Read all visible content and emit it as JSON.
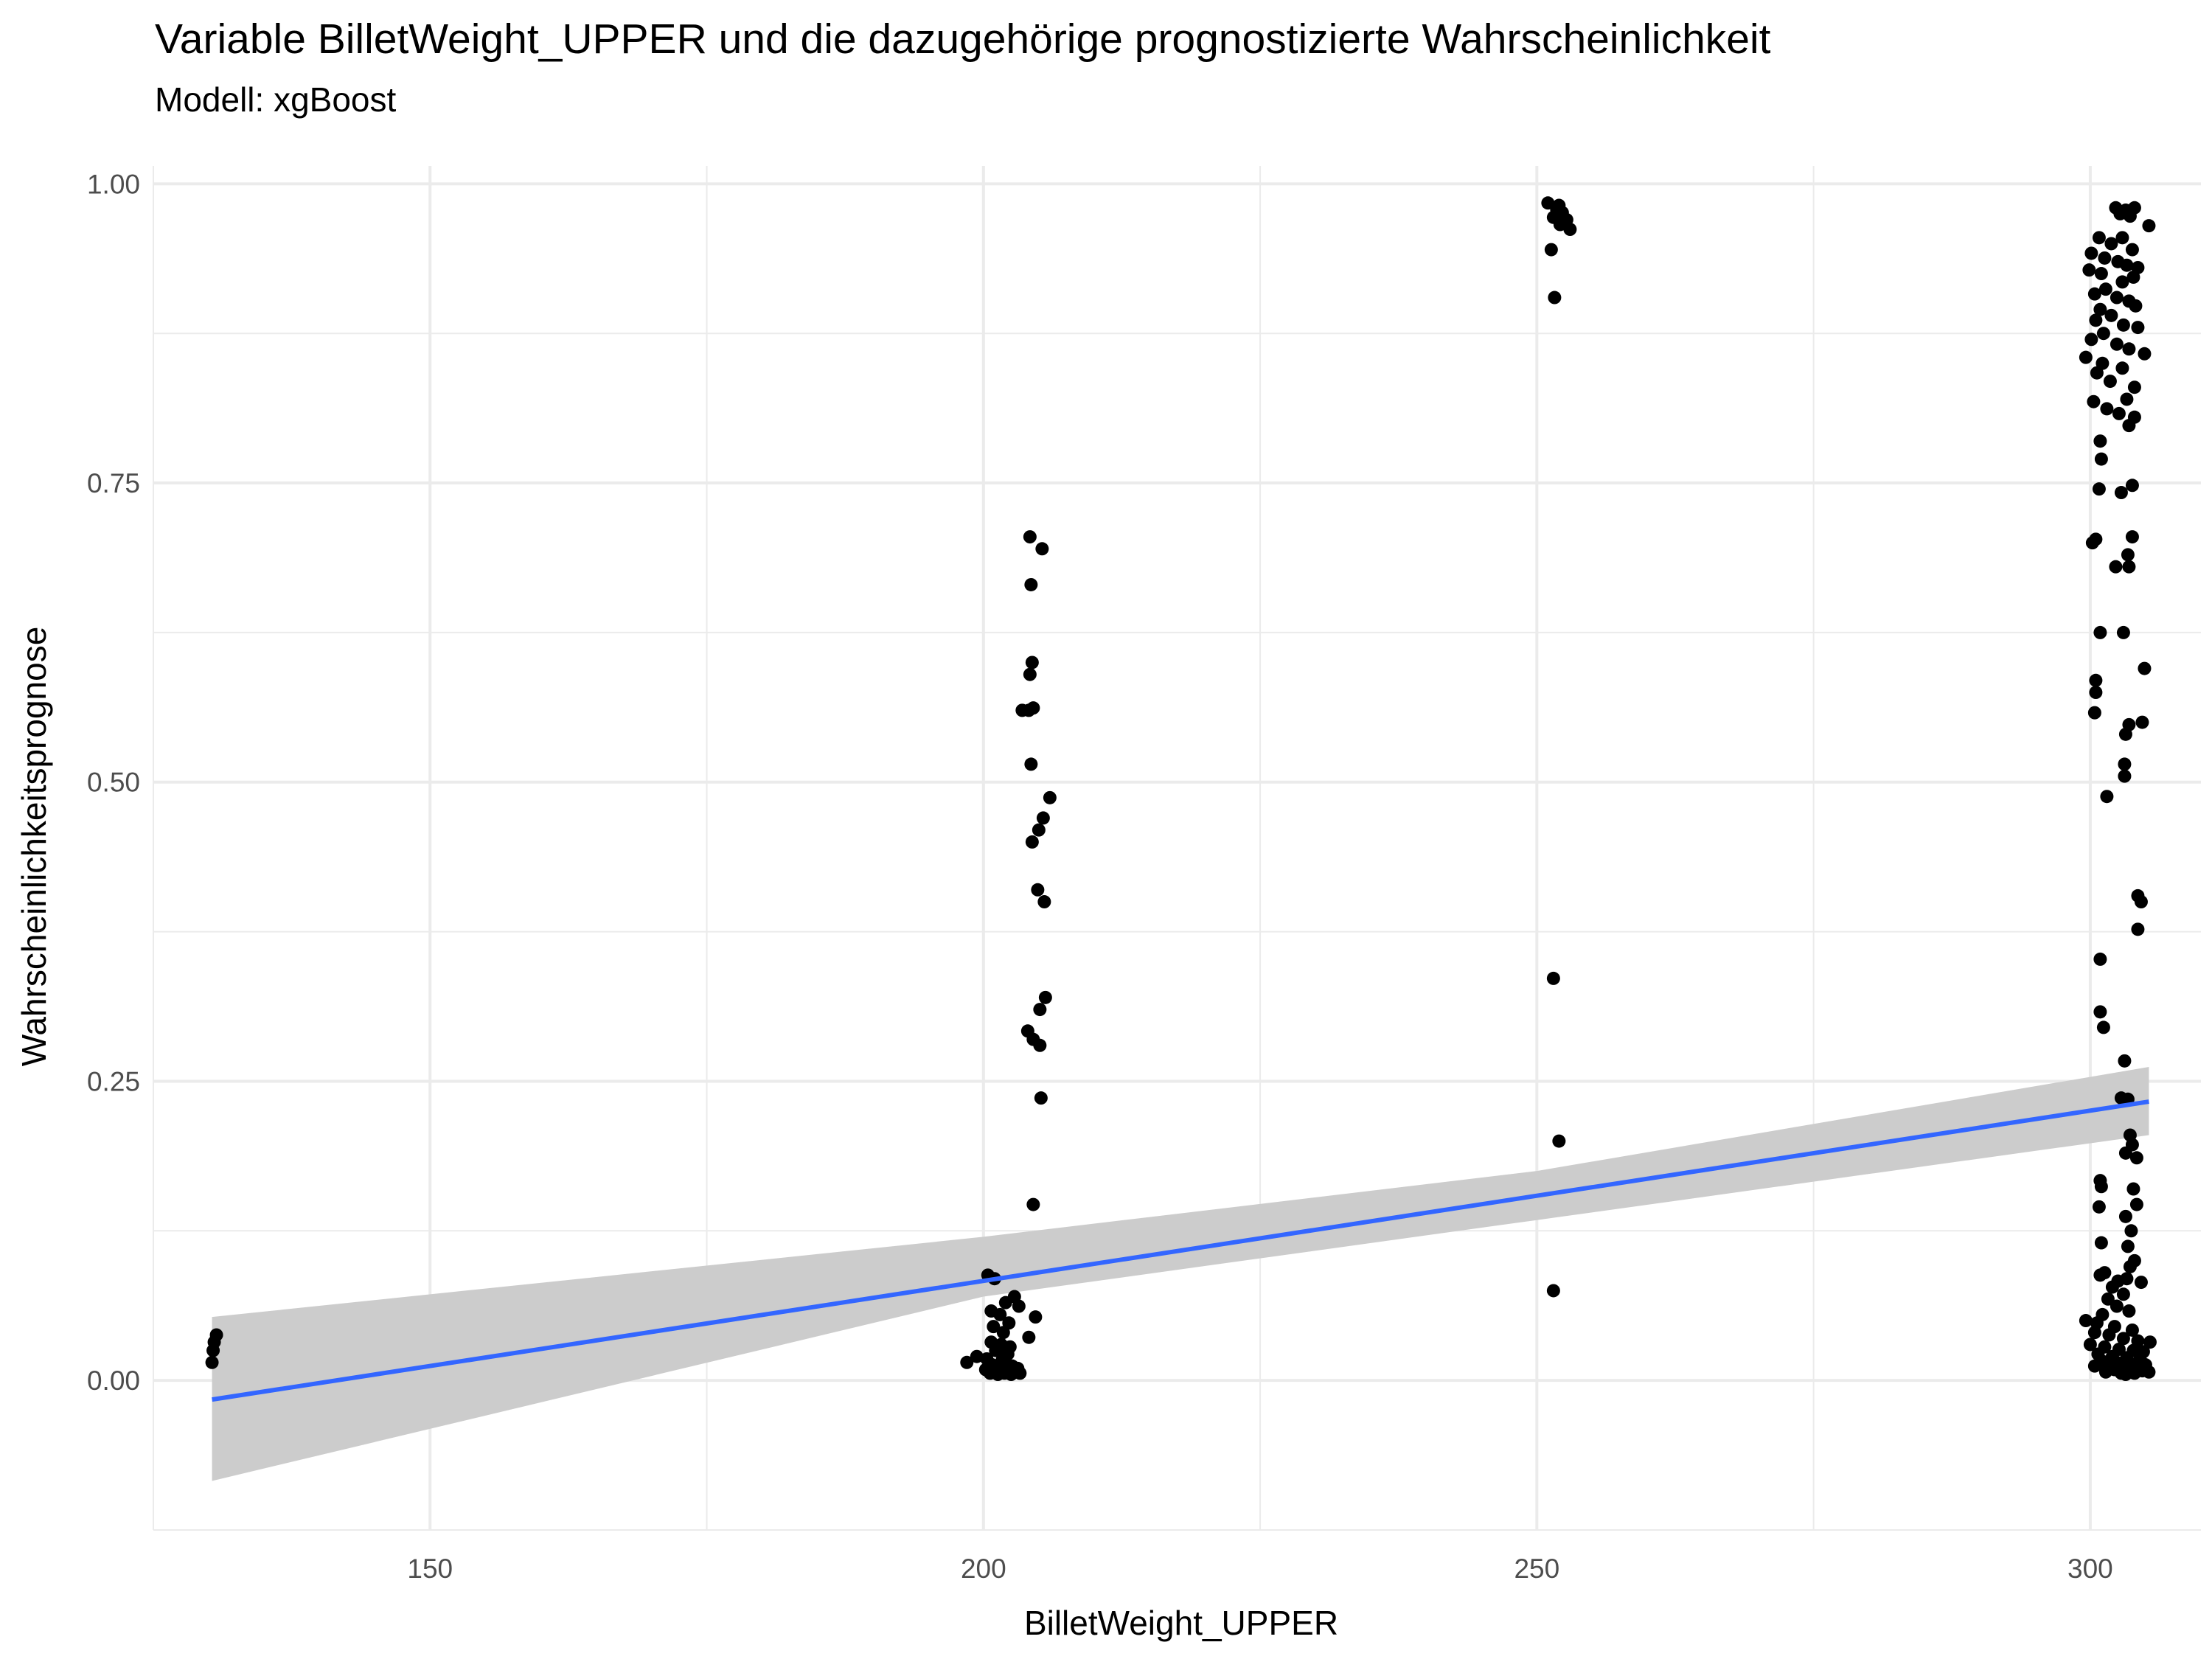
{
  "chart_data": {
    "type": "scatter",
    "title": "Variable BilletWeight_UPPER und die dazugehörige prognostizierte Wahrscheinlichkeit",
    "subtitle": "Modell: xgBoost",
    "xlabel": "BilletWeight_UPPER",
    "ylabel": "Wahrscheinlichkeitsprognose",
    "xlim": [
      125,
      310
    ],
    "ylim": [
      -0.125,
      1.015
    ],
    "x_ticks": [
      150,
      200,
      250,
      300
    ],
    "x_tick_labels": [
      "150",
      "200",
      "250",
      "300"
    ],
    "y_ticks": [
      0,
      0.25,
      0.5,
      0.75,
      1.0
    ],
    "y_tick_labels": [
      "0.00",
      "0.25",
      "0.50",
      "0.75",
      "1.00"
    ],
    "grid": true,
    "colors": {
      "points": "#000000",
      "line": "#3366FF",
      "ribbon": "#CCCCCC",
      "grid": "#EBEBEB",
      "axis_text": "#4D4D4D"
    },
    "points": [
      [
        130.3,
        0.015
      ],
      [
        130.4,
        0.025
      ],
      [
        130.5,
        0.032
      ],
      [
        130.7,
        0.038
      ],
      [
        204.2,
        0.705
      ],
      [
        205.3,
        0.695
      ],
      [
        204.3,
        0.665
      ],
      [
        204.4,
        0.6
      ],
      [
        204.2,
        0.59
      ],
      [
        203.5,
        0.56
      ],
      [
        204.1,
        0.56
      ],
      [
        204.5,
        0.562
      ],
      [
        204.3,
        0.515
      ],
      [
        206.0,
        0.487
      ],
      [
        205.4,
        0.47
      ],
      [
        205.0,
        0.46
      ],
      [
        204.4,
        0.45
      ],
      [
        204.9,
        0.41
      ],
      [
        205.5,
        0.4
      ],
      [
        205.6,
        0.32
      ],
      [
        205.1,
        0.31
      ],
      [
        204.0,
        0.292
      ],
      [
        204.5,
        0.285
      ],
      [
        205.1,
        0.28
      ],
      [
        205.2,
        0.236
      ],
      [
        204.5,
        0.147
      ],
      [
        200.4,
        0.088
      ],
      [
        201.0,
        0.085
      ],
      [
        202.8,
        0.07
      ],
      [
        202.0,
        0.065
      ],
      [
        203.2,
        0.062
      ],
      [
        200.7,
        0.058
      ],
      [
        201.5,
        0.055
      ],
      [
        204.7,
        0.053
      ],
      [
        202.3,
        0.048
      ],
      [
        200.9,
        0.045
      ],
      [
        201.8,
        0.04
      ],
      [
        204.1,
        0.036
      ],
      [
        200.7,
        0.032
      ],
      [
        201.6,
        0.03
      ],
      [
        202.4,
        0.028
      ],
      [
        201.1,
        0.025
      ],
      [
        202.2,
        0.022
      ],
      [
        199.4,
        0.02
      ],
      [
        200.3,
        0.018
      ],
      [
        201.7,
        0.017
      ],
      [
        198.5,
        0.015
      ],
      [
        200.8,
        0.013
      ],
      [
        202.6,
        0.012
      ],
      [
        201.2,
        0.01
      ],
      [
        203.1,
        0.01
      ],
      [
        200.2,
        0.009
      ],
      [
        201.5,
        0.008
      ],
      [
        202.0,
        0.008
      ],
      [
        202.9,
        0.007
      ],
      [
        200.6,
        0.006
      ],
      [
        201.9,
        0.006
      ],
      [
        203.3,
        0.006
      ],
      [
        201.3,
        0.005
      ],
      [
        202.5,
        0.005
      ],
      [
        251.0,
        0.984
      ],
      [
        252.0,
        0.982
      ],
      [
        251.8,
        0.978
      ],
      [
        252.3,
        0.976
      ],
      [
        251.5,
        0.972
      ],
      [
        252.7,
        0.97
      ],
      [
        252.1,
        0.966
      ],
      [
        253.0,
        0.962
      ],
      [
        251.3,
        0.945
      ],
      [
        251.6,
        0.905
      ],
      [
        251.5,
        0.336
      ],
      [
        252.0,
        0.2
      ],
      [
        251.5,
        0.075
      ],
      [
        302.3,
        0.98
      ],
      [
        303.2,
        0.978
      ],
      [
        304.0,
        0.98
      ],
      [
        302.7,
        0.975
      ],
      [
        303.6,
        0.973
      ],
      [
        305.3,
        0.965
      ],
      [
        302.9,
        0.955
      ],
      [
        300.8,
        0.955
      ],
      [
        301.9,
        0.95
      ],
      [
        303.8,
        0.945
      ],
      [
        300.1,
        0.942
      ],
      [
        301.3,
        0.938
      ],
      [
        302.5,
        0.935
      ],
      [
        303.3,
        0.932
      ],
      [
        304.3,
        0.93
      ],
      [
        299.9,
        0.928
      ],
      [
        301.0,
        0.925
      ],
      [
        303.9,
        0.922
      ],
      [
        302.9,
        0.918
      ],
      [
        301.4,
        0.912
      ],
      [
        300.4,
        0.908
      ],
      [
        302.4,
        0.905
      ],
      [
        303.5,
        0.902
      ],
      [
        304.1,
        0.898
      ],
      [
        300.9,
        0.895
      ],
      [
        301.9,
        0.89
      ],
      [
        300.5,
        0.886
      ],
      [
        303.0,
        0.882
      ],
      [
        304.3,
        0.88
      ],
      [
        301.2,
        0.875
      ],
      [
        300.1,
        0.87
      ],
      [
        302.4,
        0.866
      ],
      [
        303.5,
        0.862
      ],
      [
        304.9,
        0.858
      ],
      [
        299.6,
        0.855
      ],
      [
        301.1,
        0.85
      ],
      [
        302.9,
        0.846
      ],
      [
        300.6,
        0.842
      ],
      [
        301.8,
        0.835
      ],
      [
        304.0,
        0.83
      ],
      [
        303.3,
        0.82
      ],
      [
        300.3,
        0.818
      ],
      [
        301.5,
        0.812
      ],
      [
        302.6,
        0.808
      ],
      [
        304.0,
        0.805
      ],
      [
        303.5,
        0.798
      ],
      [
        300.9,
        0.785
      ],
      [
        301.0,
        0.77
      ],
      [
        300.8,
        0.745
      ],
      [
        303.8,
        0.748
      ],
      [
        302.8,
        0.742
      ],
      [
        300.5,
        0.703
      ],
      [
        300.2,
        0.7
      ],
      [
        303.8,
        0.705
      ],
      [
        303.4,
        0.69
      ],
      [
        303.5,
        0.68
      ],
      [
        302.3,
        0.68
      ],
      [
        300.9,
        0.625
      ],
      [
        303.0,
        0.625
      ],
      [
        300.5,
        0.585
      ],
      [
        300.5,
        0.575
      ],
      [
        300.4,
        0.558
      ],
      [
        304.9,
        0.595
      ],
      [
        304.7,
        0.55
      ],
      [
        303.5,
        0.548
      ],
      [
        303.2,
        0.54
      ],
      [
        303.1,
        0.515
      ],
      [
        303.1,
        0.505
      ],
      [
        301.5,
        0.488
      ],
      [
        304.3,
        0.405
      ],
      [
        304.6,
        0.4
      ],
      [
        304.3,
        0.377
      ],
      [
        300.9,
        0.352
      ],
      [
        300.9,
        0.308
      ],
      [
        301.2,
        0.295
      ],
      [
        303.1,
        0.267
      ],
      [
        302.8,
        0.236
      ],
      [
        303.4,
        0.235
      ],
      [
        303.6,
        0.205
      ],
      [
        303.8,
        0.197
      ],
      [
        303.2,
        0.19
      ],
      [
        304.2,
        0.186
      ],
      [
        300.9,
        0.167
      ],
      [
        301.0,
        0.162
      ],
      [
        303.9,
        0.16
      ],
      [
        304.2,
        0.147
      ],
      [
        300.8,
        0.145
      ],
      [
        303.2,
        0.137
      ],
      [
        303.7,
        0.125
      ],
      [
        301.0,
        0.115
      ],
      [
        303.4,
        0.112
      ],
      [
        304.0,
        0.1
      ],
      [
        303.6,
        0.095
      ],
      [
        301.3,
        0.09
      ],
      [
        300.9,
        0.088
      ],
      [
        303.3,
        0.085
      ],
      [
        302.5,
        0.083
      ],
      [
        304.6,
        0.082
      ],
      [
        302.0,
        0.078
      ],
      [
        303.0,
        0.072
      ],
      [
        301.6,
        0.068
      ],
      [
        302.4,
        0.062
      ],
      [
        303.5,
        0.058
      ],
      [
        301.1,
        0.055
      ],
      [
        299.6,
        0.05
      ],
      [
        300.6,
        0.048
      ],
      [
        302.2,
        0.045
      ],
      [
        303.8,
        0.042
      ],
      [
        300.4,
        0.04
      ],
      [
        301.7,
        0.038
      ],
      [
        303.0,
        0.035
      ],
      [
        304.3,
        0.033
      ],
      [
        305.4,
        0.032
      ],
      [
        300.0,
        0.03
      ],
      [
        301.3,
        0.028
      ],
      [
        302.6,
        0.026
      ],
      [
        303.9,
        0.025
      ],
      [
        304.8,
        0.024
      ],
      [
        300.7,
        0.022
      ],
      [
        302.0,
        0.02
      ],
      [
        303.3,
        0.019
      ],
      [
        304.5,
        0.018
      ],
      [
        301.1,
        0.016
      ],
      [
        302.4,
        0.015
      ],
      [
        303.6,
        0.014
      ],
      [
        305.0,
        0.013
      ],
      [
        300.4,
        0.012
      ],
      [
        301.8,
        0.011
      ],
      [
        303.0,
        0.01
      ],
      [
        304.2,
        0.01
      ],
      [
        302.2,
        0.009
      ],
      [
        303.4,
        0.008
      ],
      [
        304.7,
        0.008
      ],
      [
        305.3,
        0.007
      ],
      [
        301.4,
        0.007
      ],
      [
        302.8,
        0.006
      ],
      [
        304.0,
        0.006
      ],
      [
        303.2,
        0.005
      ]
    ],
    "trend_line": {
      "x": [
        130.3,
        305.3
      ],
      "y": [
        -0.016,
        0.233
      ]
    },
    "confidence_band": {
      "x": [
        130.3,
        200,
        250,
        305.3
      ],
      "lower": [
        -0.084,
        0.07,
        0.134,
        0.205
      ],
      "upper": [
        0.053,
        0.12,
        0.175,
        0.262
      ]
    }
  }
}
